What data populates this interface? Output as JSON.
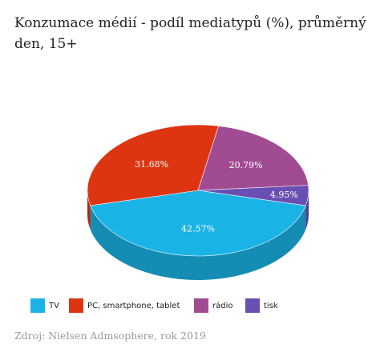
{
  "title": "Konzumace médií - podíl mediatypů (%), průměrný den, 15+",
  "source": "Zdroj: Nielsen Admsophere, rok 2019",
  "chart_data": {
    "type": "pie",
    "style": "3d",
    "title": "Konzumace médií - podíl mediatypů (%), průměrný den, 15+",
    "legend_position": "bottom",
    "series": [
      {
        "label": "TV",
        "value": 42.57,
        "display": "42.57%",
        "color": "#1ab3e6"
      },
      {
        "label": "PC, smartphone, tablet",
        "value": 31.68,
        "display": "31.68%",
        "color": "#dd3512"
      },
      {
        "label": "rádio",
        "value": 20.79,
        "display": "20.79%",
        "color": "#a14b93"
      },
      {
        "label": "tisk",
        "value": 4.95,
        "display": "4.95%",
        "color": "#6a4fb3"
      }
    ]
  }
}
